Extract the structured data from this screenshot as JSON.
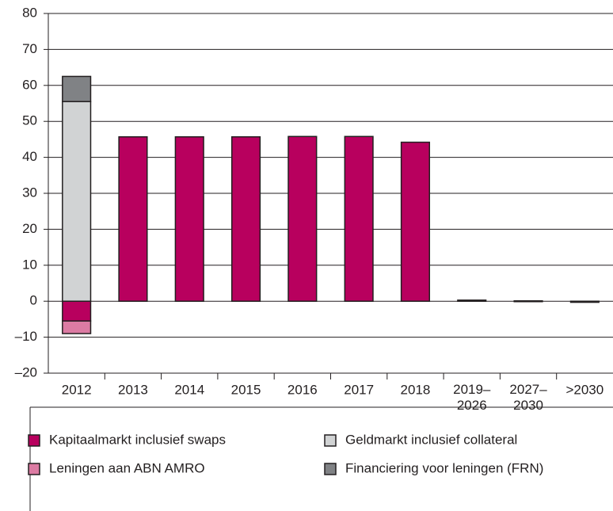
{
  "chart_data": {
    "type": "bar",
    "stacked": true,
    "categories": [
      "2012",
      "2013",
      "2014",
      "2015",
      "2016",
      "2017",
      "2018",
      "2019–2026",
      "2027–2030",
      ">2030"
    ],
    "series": [
      {
        "name": "Kapitaalmarkt inclusief swaps",
        "color": "#b8005e",
        "values": [
          -5.5,
          45.7,
          45.7,
          45.7,
          45.8,
          45.8,
          44.2,
          0.3,
          0.1,
          -0.3
        ]
      },
      {
        "name": "Leningen aan ABN AMRO",
        "color": "#dc7ba3",
        "values": [
          -3.5,
          0,
          0,
          0,
          0,
          0,
          0,
          0,
          0,
          0
        ]
      },
      {
        "name": "Geldmarkt inclusief collateral",
        "color": "#d1d3d4",
        "values": [
          55.5,
          0,
          0,
          0,
          0,
          0,
          0,
          0,
          0,
          0
        ]
      },
      {
        "name": "Financiering voor leningen (FRN)",
        "color": "#808285",
        "values": [
          7,
          0,
          0,
          0,
          0,
          0,
          0,
          0,
          0,
          0
        ]
      }
    ],
    "ylim": [
      -20,
      80
    ],
    "yticks": [
      {
        "value": -20,
        "label": "–20"
      },
      {
        "value": -10,
        "label": "–10"
      },
      0,
      10,
      20,
      30,
      40,
      50,
      60,
      70,
      80
    ],
    "grid": true
  }
}
